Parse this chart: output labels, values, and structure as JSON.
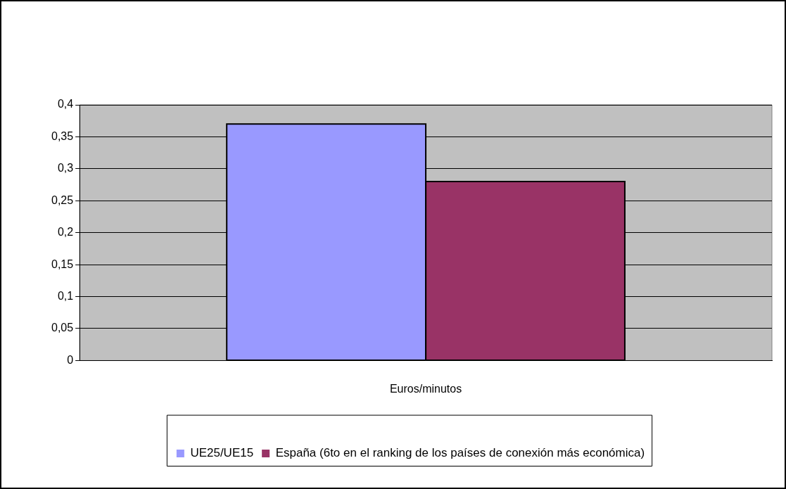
{
  "chart_data": {
    "type": "bar",
    "categories": [
      "Euros/minutos"
    ],
    "series": [
      {
        "name": "UE25/UE15",
        "color": "#9999ff",
        "values": [
          0.37
        ]
      },
      {
        "name": "España (6to en el ranking de los países de conexión más económica)",
        "color": "#993366",
        "values": [
          0.28
        ]
      }
    ],
    "ylim": [
      0,
      0.4
    ],
    "yticks": [
      {
        "value": 0,
        "label": "0"
      },
      {
        "value": 0.05,
        "label": "0,05"
      },
      {
        "value": 0.1,
        "label": "0,1"
      },
      {
        "value": 0.15,
        "label": "0,15"
      },
      {
        "value": 0.2,
        "label": "0,2"
      },
      {
        "value": 0.25,
        "label": "0,25"
      },
      {
        "value": 0.3,
        "label": "0,3"
      },
      {
        "value": 0.35,
        "label": "0,35"
      },
      {
        "value": 0.4,
        "label": "0,4"
      }
    ],
    "grid": "y",
    "legend": "bottom"
  }
}
